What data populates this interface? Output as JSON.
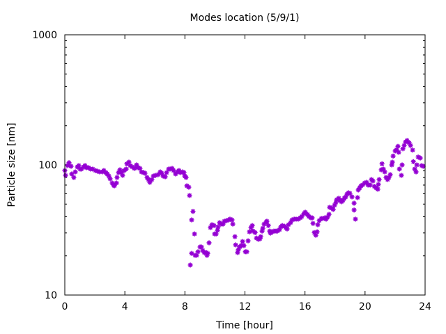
{
  "chart_data": {
    "type": "scatter",
    "title": "Modes location (5/9/1)",
    "xlabel": "Time [hour]",
    "ylabel": "Particle size [nm]",
    "xlim": [
      0,
      24
    ],
    "ylim": [
      10,
      1000
    ],
    "yscale": "log",
    "grid": false,
    "legend": "none",
    "x_ticks": [
      "0",
      "4",
      "8",
      "12",
      "16",
      "20",
      "24"
    ],
    "y_ticks": [
      "10",
      "100",
      "1000"
    ],
    "marker_color": "#9400d3",
    "series": [
      {
        "name": "modes",
        "points": [
          [
            0.0,
            90.6
          ],
          [
            0.05,
            83.1
          ],
          [
            0.19,
            98.8
          ],
          [
            0.28,
            104
          ],
          [
            0.42,
            97.6
          ],
          [
            0.46,
            85.2
          ],
          [
            0.6,
            80.1
          ],
          [
            0.7,
            88.4
          ],
          [
            0.84,
            96.4
          ],
          [
            0.93,
            98.8
          ],
          [
            1.02,
            92.9
          ],
          [
            1.11,
            92.9
          ],
          [
            1.25,
            96.4
          ],
          [
            1.35,
            98.8
          ],
          [
            1.44,
            95.2
          ],
          [
            1.58,
            95.2
          ],
          [
            1.72,
            92.9
          ],
          [
            1.86,
            92.9
          ],
          [
            2.04,
            90.6
          ],
          [
            2.18,
            89.5
          ],
          [
            2.32,
            88.4
          ],
          [
            2.51,
            88.4
          ],
          [
            2.6,
            90.6
          ],
          [
            2.74,
            87.3
          ],
          [
            2.83,
            85.2
          ],
          [
            2.93,
            82.1
          ],
          [
            3.02,
            78.2
          ],
          [
            3.16,
            72.6
          ],
          [
            3.25,
            70.0
          ],
          [
            3.3,
            69.1
          ],
          [
            3.44,
            72.6
          ],
          [
            3.48,
            80.1
          ],
          [
            3.58,
            87.3
          ],
          [
            3.67,
            91.7
          ],
          [
            3.76,
            87.3
          ],
          [
            3.85,
            83.1
          ],
          [
            3.95,
            90.6
          ],
          [
            4.09,
            92.9
          ],
          [
            4.13,
            102
          ],
          [
            4.27,
            105
          ],
          [
            4.36,
            98.8
          ],
          [
            4.5,
            96.4
          ],
          [
            4.64,
            94.0
          ],
          [
            4.78,
            100
          ],
          [
            4.88,
            95.2
          ],
          [
            5.01,
            94.0
          ],
          [
            5.11,
            88.4
          ],
          [
            5.25,
            87.3
          ],
          [
            5.34,
            86.3
          ],
          [
            5.48,
            80.1
          ],
          [
            5.57,
            77.2
          ],
          [
            5.66,
            73.5
          ],
          [
            5.8,
            77.2
          ],
          [
            5.9,
            82.1
          ],
          [
            6.04,
            83.1
          ],
          [
            6.22,
            84.2
          ],
          [
            6.36,
            88.4
          ],
          [
            6.45,
            86.3
          ],
          [
            6.55,
            82.1
          ],
          [
            6.69,
            81.1
          ],
          [
            6.78,
            87.3
          ],
          [
            6.92,
            92.9
          ],
          [
            7.01,
            92.9
          ],
          [
            7.15,
            94.0
          ],
          [
            7.24,
            90.6
          ],
          [
            7.38,
            85.2
          ],
          [
            7.48,
            88.4
          ],
          [
            7.61,
            90.6
          ],
          [
            7.71,
            87.3
          ],
          [
            7.85,
            88.4
          ],
          [
            7.94,
            87.3
          ],
          [
            7.99,
            82.1
          ],
          [
            8.08,
            80.1
          ],
          [
            8.13,
            69.1
          ],
          [
            8.26,
            67.4
          ],
          [
            8.31,
            58.2
          ],
          [
            8.36,
            17.0
          ],
          [
            8.45,
            37.8
          ],
          [
            8.45,
            20.9
          ],
          [
            8.54,
            43.9
          ],
          [
            8.64,
            29.5
          ],
          [
            8.68,
            20.2
          ],
          [
            8.78,
            20.2
          ],
          [
            8.87,
            21.5
          ],
          [
            9.01,
            23.4
          ],
          [
            9.1,
            23.4
          ],
          [
            9.19,
            22.0
          ],
          [
            9.29,
            21.2
          ],
          [
            9.43,
            21.2
          ],
          [
            9.47,
            20.2
          ],
          [
            9.52,
            20.9
          ],
          [
            9.61,
            25.2
          ],
          [
            9.7,
            33.0
          ],
          [
            9.8,
            34.7
          ],
          [
            9.94,
            34.2
          ],
          [
            9.98,
            29.5
          ],
          [
            10.08,
            29.5
          ],
          [
            10.17,
            31.4
          ],
          [
            10.21,
            33.4
          ],
          [
            10.31,
            36.0
          ],
          [
            10.4,
            35.1
          ],
          [
            10.54,
            35.1
          ],
          [
            10.63,
            36.9
          ],
          [
            10.77,
            37.3
          ],
          [
            10.91,
            37.8
          ],
          [
            11.0,
            38.3
          ],
          [
            11.14,
            37.8
          ],
          [
            11.19,
            35.1
          ],
          [
            11.33,
            28.1
          ],
          [
            11.38,
            24.3
          ],
          [
            11.51,
            21.2
          ],
          [
            11.56,
            22.3
          ],
          [
            11.65,
            23.4
          ],
          [
            11.75,
            24.0
          ],
          [
            11.84,
            25.8
          ],
          [
            11.93,
            24.0
          ],
          [
            12.03,
            21.5
          ],
          [
            12.12,
            21.5
          ],
          [
            12.21,
            26.1
          ],
          [
            12.3,
            30.6
          ],
          [
            12.4,
            33.0
          ],
          [
            12.49,
            34.2
          ],
          [
            12.54,
            31.0
          ],
          [
            12.68,
            30.2
          ],
          [
            12.77,
            27.4
          ],
          [
            12.91,
            26.8
          ],
          [
            13.0,
            27.1
          ],
          [
            13.05,
            28.1
          ],
          [
            13.14,
            31.0
          ],
          [
            13.19,
            32.6
          ],
          [
            13.28,
            35.1
          ],
          [
            13.42,
            36.4
          ],
          [
            13.46,
            36.9
          ],
          [
            13.56,
            34.2
          ],
          [
            13.65,
            31.0
          ],
          [
            13.7,
            29.9
          ],
          [
            13.84,
            30.6
          ],
          [
            13.93,
            31.0
          ],
          [
            14.07,
            31.0
          ],
          [
            14.16,
            31.0
          ],
          [
            14.3,
            31.8
          ],
          [
            14.39,
            33.4
          ],
          [
            14.49,
            34.2
          ],
          [
            14.63,
            33.8
          ],
          [
            14.72,
            33.0
          ],
          [
            14.81,
            32.2
          ],
          [
            14.9,
            34.7
          ],
          [
            15.04,
            36.0
          ],
          [
            15.14,
            37.8
          ],
          [
            15.28,
            38.3
          ],
          [
            15.41,
            38.3
          ],
          [
            15.55,
            38.3
          ],
          [
            15.69,
            39.2
          ],
          [
            15.79,
            40.2
          ],
          [
            15.93,
            42.3
          ],
          [
            16.02,
            43.3
          ],
          [
            16.16,
            41.7
          ],
          [
            16.25,
            40.2
          ],
          [
            16.39,
            39.2
          ],
          [
            16.48,
            39.2
          ],
          [
            16.53,
            35.5
          ],
          [
            16.62,
            30.2
          ],
          [
            16.72,
            28.8
          ],
          [
            16.81,
            30.6
          ],
          [
            16.85,
            34.7
          ],
          [
            16.95,
            37.3
          ],
          [
            17.09,
            38.7
          ],
          [
            17.18,
            38.7
          ],
          [
            17.32,
            39.2
          ],
          [
            17.41,
            38.3
          ],
          [
            17.5,
            39.7
          ],
          [
            17.6,
            41.7
          ],
          [
            17.64,
            47.2
          ],
          [
            17.78,
            46.6
          ],
          [
            17.88,
            45.5
          ],
          [
            17.97,
            49.0
          ],
          [
            18.06,
            51.5
          ],
          [
            18.11,
            54.0
          ],
          [
            18.25,
            55.4
          ],
          [
            18.34,
            53.4
          ],
          [
            18.43,
            52.1
          ],
          [
            18.53,
            53.4
          ],
          [
            18.62,
            55.4
          ],
          [
            18.71,
            56.8
          ],
          [
            18.8,
            59.6
          ],
          [
            18.9,
            61.1
          ],
          [
            18.99,
            60.4
          ],
          [
            19.13,
            56.8
          ],
          [
            19.27,
            50.8
          ],
          [
            19.27,
            45.0
          ],
          [
            19.36,
            38.3
          ],
          [
            19.5,
            56.1
          ],
          [
            19.55,
            64.2
          ],
          [
            19.64,
            66.6
          ],
          [
            19.73,
            69.1
          ],
          [
            19.83,
            70.0
          ],
          [
            19.97,
            72.6
          ],
          [
            20.1,
            73.5
          ],
          [
            20.2,
            70.0
          ],
          [
            20.34,
            70.0
          ],
          [
            20.43,
            77.2
          ],
          [
            20.52,
            75.3
          ],
          [
            20.62,
            68.3
          ],
          [
            20.75,
            66.6
          ],
          [
            20.85,
            65.0
          ],
          [
            20.89,
            70.8
          ],
          [
            20.94,
            77.2
          ],
          [
            21.08,
            91.7
          ],
          [
            21.13,
            102
          ],
          [
            21.22,
            92.9
          ],
          [
            21.31,
            88.4
          ],
          [
            21.4,
            80.1
          ],
          [
            21.5,
            77.2
          ],
          [
            21.59,
            80.1
          ],
          [
            21.68,
            84.2
          ],
          [
            21.78,
            100
          ],
          [
            21.82,
            105
          ],
          [
            21.87,
            117
          ],
          [
            22.01,
            128
          ],
          [
            22.1,
            131
          ],
          [
            22.19,
            139
          ],
          [
            22.24,
            125
          ],
          [
            22.29,
            92.9
          ],
          [
            22.42,
            83.1
          ],
          [
            22.47,
            100
          ],
          [
            22.52,
            133
          ],
          [
            22.61,
            141
          ],
          [
            22.7,
            150
          ],
          [
            22.8,
            154
          ],
          [
            22.94,
            148
          ],
          [
            23.03,
            141
          ],
          [
            23.17,
            130
          ],
          [
            23.22,
            106
          ],
          [
            23.31,
            92.9
          ],
          [
            23.4,
            88.4
          ],
          [
            23.45,
            100
          ],
          [
            23.54,
            115
          ],
          [
            23.68,
            113
          ],
          [
            23.77,
            98.8
          ],
          [
            23.87,
            97.6
          ]
        ]
      }
    ]
  }
}
